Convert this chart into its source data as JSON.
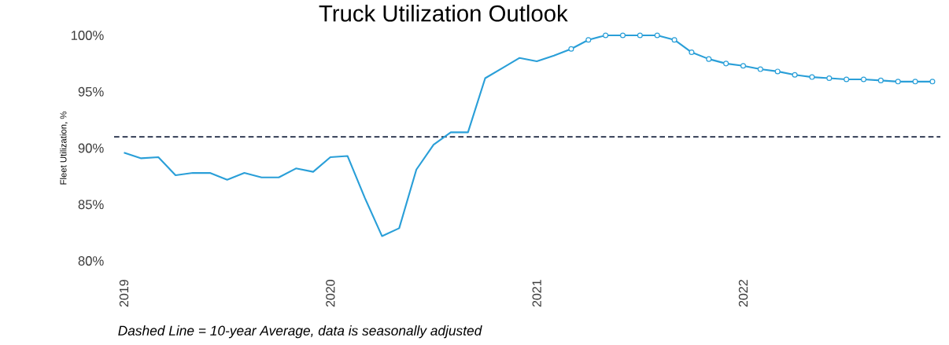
{
  "chart_data": {
    "type": "line",
    "title": "Truck Utilization Outlook",
    "ylabel": "Fleet Utilization, %",
    "annotations": [
      "Dashed Line = 10-year Average, data is seasonally adjusted"
    ],
    "xlim": [
      "2018-12-14",
      "2022-12-15"
    ],
    "xticks": [
      "2019",
      "2020",
      "2021",
      "2022"
    ],
    "ylim": [
      80,
      100
    ],
    "yticks": [
      {
        "value": 80,
        "label": "80%"
      },
      {
        "value": 85,
        "label": "85%"
      },
      {
        "value": 90,
        "label": "90%"
      },
      {
        "value": 95,
        "label": "95%"
      },
      {
        "value": 100,
        "label": "100%"
      }
    ],
    "ref_lines": [
      {
        "axis": "y",
        "value": 91.0,
        "color": "#1f2a44",
        "line_style": "dashed"
      }
    ],
    "series": [
      {
        "color": "#2a9fd8",
        "marker": "none",
        "x": [
          "2019-01",
          "2019-02",
          "2019-03",
          "2019-04",
          "2019-05",
          "2019-06",
          "2019-07",
          "2019-08",
          "2019-09",
          "2019-10",
          "2019-11",
          "2019-12",
          "2020-01",
          "2020-02",
          "2020-03",
          "2020-04",
          "2020-05",
          "2020-06",
          "2020-07",
          "2020-08",
          "2020-09",
          "2020-10",
          "2020-11",
          "2020-12",
          "2021-01",
          "2021-02",
          "2021-03"
        ],
        "values": [
          89.6,
          89.1,
          89.2,
          87.6,
          87.8,
          87.8,
          87.2,
          87.8,
          87.4,
          87.4,
          88.2,
          87.9,
          89.2,
          89.3,
          85.6,
          82.2,
          82.9,
          88.1,
          90.3,
          91.4,
          91.4,
          96.2,
          97.1,
          98.0,
          97.7,
          98.2,
          98.8
        ]
      },
      {
        "color": "#2a9fd8",
        "marker": "circle",
        "x": [
          "2021-03",
          "2021-04",
          "2021-05",
          "2021-06",
          "2021-07",
          "2021-08",
          "2021-09",
          "2021-10",
          "2021-11",
          "2021-12",
          "2022-01",
          "2022-02",
          "2022-03",
          "2022-04",
          "2022-05",
          "2022-06",
          "2022-07",
          "2022-08",
          "2022-09",
          "2022-10",
          "2022-11",
          "2022-12"
        ],
        "values": [
          98.8,
          99.6,
          100.0,
          100.0,
          100.0,
          100.0,
          99.6,
          98.5,
          97.9,
          97.5,
          97.3,
          97.0,
          96.8,
          96.5,
          96.3,
          96.2,
          96.1,
          96.1,
          96.0,
          95.9,
          95.9,
          95.9
        ]
      }
    ]
  }
}
